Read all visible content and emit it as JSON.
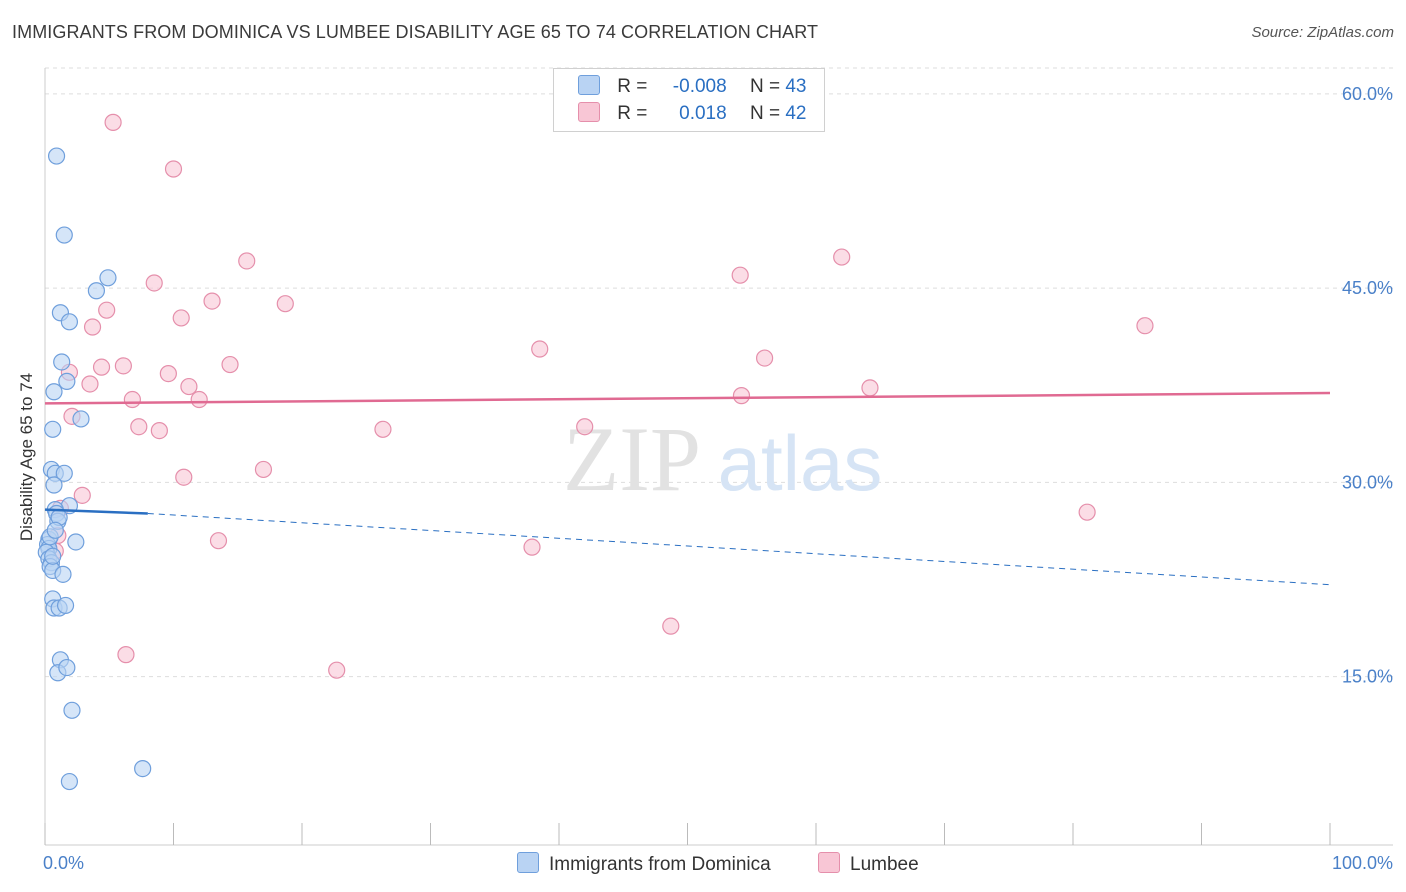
{
  "title": "IMMIGRANTS FROM DOMINICA VS LUMBEE DISABILITY AGE 65 TO 74 CORRELATION CHART",
  "source": "Source: ZipAtlas.com",
  "watermark": {
    "zip": "ZIP",
    "atlas": "atlas"
  },
  "colors": {
    "blue_fill": "#b9d3f3",
    "blue_stroke": "#6f9fdc",
    "blue_line": "#2a6fc2",
    "pink_fill": "#f8c6d5",
    "pink_stroke": "#e58fab",
    "pink_line": "#e06a92",
    "axis_label": "#4a80c8",
    "grid": "#dddddd"
  },
  "legend": {
    "blue": {
      "r_label": "R =",
      "r_value": "-0.008",
      "n_label": "N =",
      "n_value": "43"
    },
    "pink": {
      "r_label": "R =",
      "r_value": "0.018",
      "n_label": "N =",
      "n_value": "42"
    }
  },
  "chart_data": {
    "type": "scatter",
    "title": "IMMIGRANTS FROM DOMINICA VS LUMBEE DISABILITY AGE 65 TO 74 CORRELATION CHART",
    "xlabel": "",
    "ylabel": "Disability Age 65 to 74",
    "xlim": [
      0,
      100
    ],
    "ylim": [
      2,
      62
    ],
    "x_tick_labels": [
      {
        "value": 0,
        "label": "0.0%"
      },
      {
        "value": 100,
        "label": "100.0%"
      }
    ],
    "y_ticks": [
      {
        "value": 15,
        "label": "15.0%"
      },
      {
        "value": 30,
        "label": "30.0%"
      },
      {
        "value": 45,
        "label": "45.0%"
      },
      {
        "value": 60,
        "label": "60.0%"
      }
    ],
    "grid": true,
    "legend_position": "top-center",
    "series": [
      {
        "name": "Immigrants from Dominica",
        "color": "#6f9fdc",
        "trend": {
          "x0": 0,
          "y0": 27.9,
          "x1": 8,
          "y1": 27.6,
          "dash_to_x": 100,
          "dash_to_y": 22.1
        },
        "points": [
          [
            0.9,
            55.2
          ],
          [
            1.5,
            49.1
          ],
          [
            4.9,
            45.8
          ],
          [
            4.0,
            44.8
          ],
          [
            1.2,
            43.1
          ],
          [
            1.9,
            42.4
          ],
          [
            1.3,
            39.3
          ],
          [
            0.7,
            37.0
          ],
          [
            1.7,
            37.8
          ],
          [
            2.8,
            34.9
          ],
          [
            0.6,
            34.1
          ],
          [
            0.5,
            31.0
          ],
          [
            0.8,
            30.7
          ],
          [
            1.5,
            30.7
          ],
          [
            0.7,
            29.8
          ],
          [
            1.9,
            28.2
          ],
          [
            0.8,
            27.9
          ],
          [
            0.9,
            27.6
          ],
          [
            1.0,
            27.0
          ],
          [
            0.3,
            25.6
          ],
          [
            0.2,
            25.2
          ],
          [
            0.3,
            24.9
          ],
          [
            0.1,
            24.6
          ],
          [
            2.4,
            25.4
          ],
          [
            0.3,
            24.1
          ],
          [
            0.5,
            23.8
          ],
          [
            0.4,
            23.5
          ],
          [
            0.6,
            23.2
          ],
          [
            1.4,
            22.9
          ],
          [
            0.6,
            21.0
          ],
          [
            0.7,
            20.3
          ],
          [
            1.1,
            20.3
          ],
          [
            1.6,
            20.5
          ],
          [
            1.2,
            16.3
          ],
          [
            1.0,
            15.3
          ],
          [
            1.7,
            15.7
          ],
          [
            2.1,
            12.4
          ],
          [
            1.9,
            6.9
          ],
          [
            7.6,
            7.9
          ],
          [
            0.6,
            24.3
          ],
          [
            0.4,
            25.8
          ],
          [
            1.1,
            27.3
          ],
          [
            0.8,
            26.3
          ]
        ]
      },
      {
        "name": "Lumbee",
        "color": "#e58fab",
        "trend": {
          "x0": 0,
          "y0": 36.1,
          "x1": 100,
          "y1": 36.9
        },
        "points": [
          [
            5.3,
            57.8
          ],
          [
            10.0,
            54.2
          ],
          [
            15.7,
            47.1
          ],
          [
            8.5,
            45.4
          ],
          [
            13.0,
            44.0
          ],
          [
            18.7,
            43.8
          ],
          [
            4.8,
            43.3
          ],
          [
            10.6,
            42.7
          ],
          [
            3.7,
            42.0
          ],
          [
            1.9,
            38.5
          ],
          [
            4.4,
            38.9
          ],
          [
            6.1,
            39.0
          ],
          [
            9.6,
            38.4
          ],
          [
            14.4,
            39.1
          ],
          [
            11.2,
            37.4
          ],
          [
            3.5,
            37.6
          ],
          [
            12.0,
            36.4
          ],
          [
            6.8,
            36.4
          ],
          [
            2.1,
            35.1
          ],
          [
            7.3,
            34.3
          ],
          [
            8.9,
            34.0
          ],
          [
            26.3,
            34.1
          ],
          [
            42.0,
            34.3
          ],
          [
            38.5,
            40.3
          ],
          [
            56.0,
            39.6
          ],
          [
            64.2,
            37.3
          ],
          [
            54.2,
            36.7
          ],
          [
            54.1,
            46.0
          ],
          [
            62.0,
            47.4
          ],
          [
            85.6,
            42.1
          ],
          [
            17.0,
            31.0
          ],
          [
            10.8,
            30.4
          ],
          [
            2.9,
            29.0
          ],
          [
            1.2,
            28.0
          ],
          [
            81.1,
            27.7
          ],
          [
            1.0,
            25.9
          ],
          [
            13.5,
            25.5
          ],
          [
            37.9,
            25.0
          ],
          [
            0.8,
            24.7
          ],
          [
            48.7,
            18.9
          ],
          [
            6.3,
            16.7
          ],
          [
            22.7,
            15.5
          ]
        ]
      }
    ]
  },
  "bottom_legend": {
    "blue_label": "Immigrants from Dominica",
    "pink_label": "Lumbee"
  }
}
